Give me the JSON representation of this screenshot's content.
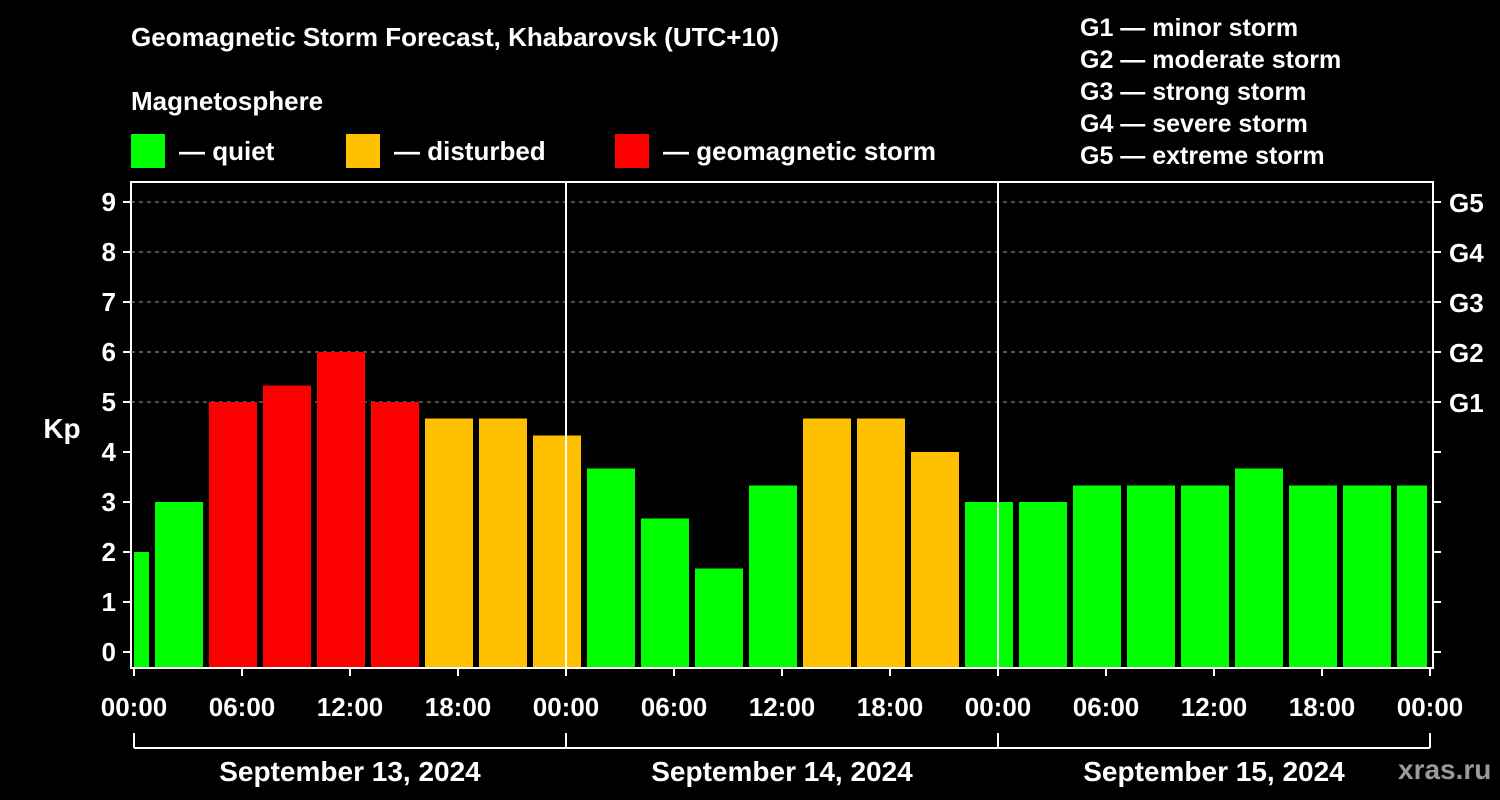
{
  "title": "Geomagnetic Storm Forecast, Khabarovsk (UTC+10)",
  "magnetosphere_heading": "Magnetosphere",
  "legend": [
    {
      "label": "— quiet",
      "color": "#00ff00"
    },
    {
      "label": "— disturbed",
      "color": "#ffc000"
    },
    {
      "label": "— geomagnetic storm",
      "color": "#ff0000"
    }
  ],
  "g_scale": [
    "G1 — minor storm",
    "G2 — moderate storm",
    "G3 — strong storm",
    "G4 — severe storm",
    "G5 — extreme storm"
  ],
  "watermark": "xras.ru",
  "chart_data": {
    "type": "bar",
    "ylabel": "Kp",
    "ylim": [
      0,
      9
    ],
    "y_ticks": [
      "0",
      "1",
      "2",
      "3",
      "4",
      "5",
      "6",
      "7",
      "8",
      "9"
    ],
    "right_axis_ticks": [
      {
        "kp": 5,
        "label": "G1"
      },
      {
        "kp": 6,
        "label": "G2"
      },
      {
        "kp": 7,
        "label": "G3"
      },
      {
        "kp": 8,
        "label": "G4"
      },
      {
        "kp": 9,
        "label": "G5"
      }
    ],
    "x_tick_labels": [
      "00:00",
      "06:00",
      "12:00",
      "18:00",
      "00:00",
      "06:00",
      "12:00",
      "18:00",
      "00:00",
      "06:00",
      "12:00",
      "18:00",
      "00:00"
    ],
    "x_range_hours": [
      0,
      72
    ],
    "day_labels": [
      "September 13, 2024",
      "September 14, 2024",
      "September 15, 2024"
    ],
    "gridlines": "dashed at Kp 5–9",
    "colors": {
      "quiet": "#00ff00",
      "disturbed": "#ffc000",
      "storm": "#ff0000"
    },
    "bars": [
      {
        "start_hour": 0,
        "kp": 2.0,
        "level": "quiet"
      },
      {
        "start_hour": 1,
        "kp": 3.0,
        "level": "quiet"
      },
      {
        "start_hour": 4,
        "kp": 5.0,
        "level": "storm"
      },
      {
        "start_hour": 7,
        "kp": 5.33,
        "level": "storm"
      },
      {
        "start_hour": 10,
        "kp": 6.0,
        "level": "storm"
      },
      {
        "start_hour": 13,
        "kp": 5.0,
        "level": "storm"
      },
      {
        "start_hour": 16,
        "kp": 4.67,
        "level": "disturbed"
      },
      {
        "start_hour": 19,
        "kp": 4.67,
        "level": "disturbed"
      },
      {
        "start_hour": 22,
        "kp": 4.33,
        "level": "disturbed"
      },
      {
        "start_hour": 25,
        "kp": 3.67,
        "level": "quiet"
      },
      {
        "start_hour": 28,
        "kp": 2.67,
        "level": "quiet"
      },
      {
        "start_hour": 31,
        "kp": 1.67,
        "level": "quiet"
      },
      {
        "start_hour": 34,
        "kp": 3.33,
        "level": "quiet"
      },
      {
        "start_hour": 37,
        "kp": 4.67,
        "level": "disturbed"
      },
      {
        "start_hour": 40,
        "kp": 4.67,
        "level": "disturbed"
      },
      {
        "start_hour": 43,
        "kp": 4.0,
        "level": "disturbed"
      },
      {
        "start_hour": 46,
        "kp": 3.0,
        "level": "quiet"
      },
      {
        "start_hour": 49,
        "kp": 3.0,
        "level": "quiet"
      },
      {
        "start_hour": 52,
        "kp": 3.33,
        "level": "quiet"
      },
      {
        "start_hour": 55,
        "kp": 3.33,
        "level": "quiet"
      },
      {
        "start_hour": 58,
        "kp": 3.33,
        "level": "quiet"
      },
      {
        "start_hour": 61,
        "kp": 3.67,
        "level": "quiet"
      },
      {
        "start_hour": 64,
        "kp": 3.33,
        "level": "quiet"
      },
      {
        "start_hour": 67,
        "kp": 3.33,
        "level": "quiet"
      },
      {
        "start_hour": 70,
        "kp": 3.33,
        "level": "quiet"
      }
    ]
  }
}
